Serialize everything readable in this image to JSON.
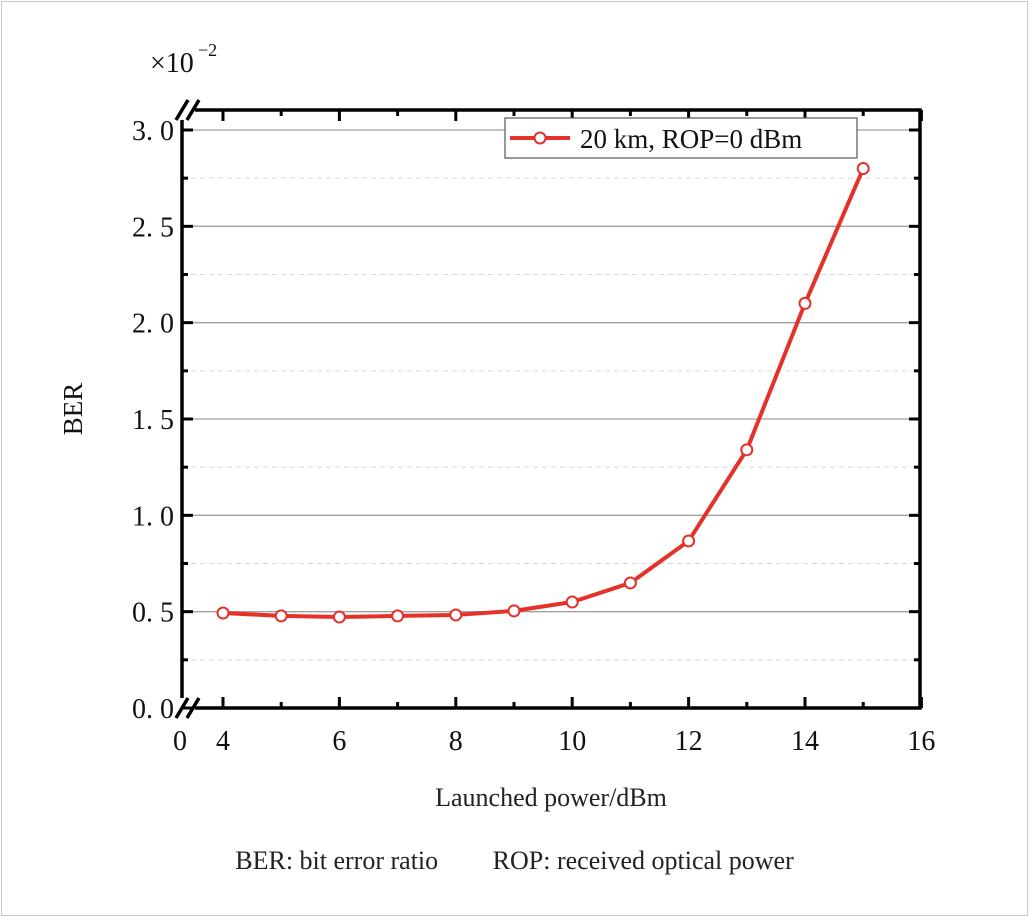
{
  "chart_data": {
    "type": "line",
    "xlabel": "Launched power/dBm",
    "ylabel": "BER",
    "y_multiplier": "×10",
    "y_multiplier_exp": "−2",
    "xlim": [
      0,
      16
    ],
    "x_break": [
      0,
      4
    ],
    "ylim": [
      0,
      3.0
    ],
    "x_ticks": [
      "0",
      "4",
      "6",
      "8",
      "10",
      "12",
      "14",
      "16"
    ],
    "y_ticks": [
      "0. 0",
      "0. 5",
      "1. 0",
      "1. 5",
      "2. 0",
      "2. 5",
      "3. 0"
    ],
    "grid": true,
    "legend_position": "top-right",
    "series": [
      {
        "name": "20 km, ROP=0 dBm",
        "color": "#e4322b",
        "marker": "open-circle",
        "x": [
          4,
          5,
          6,
          7,
          8,
          9,
          10,
          11,
          12,
          13,
          14,
          15
        ],
        "y": [
          0.493,
          0.478,
          0.472,
          0.478,
          0.483,
          0.504,
          0.55,
          0.649,
          0.867,
          1.34,
          2.1,
          2.8
        ]
      }
    ]
  },
  "caption": {
    "left": "BER: bit error ratio",
    "right": "ROP: received optical power"
  }
}
